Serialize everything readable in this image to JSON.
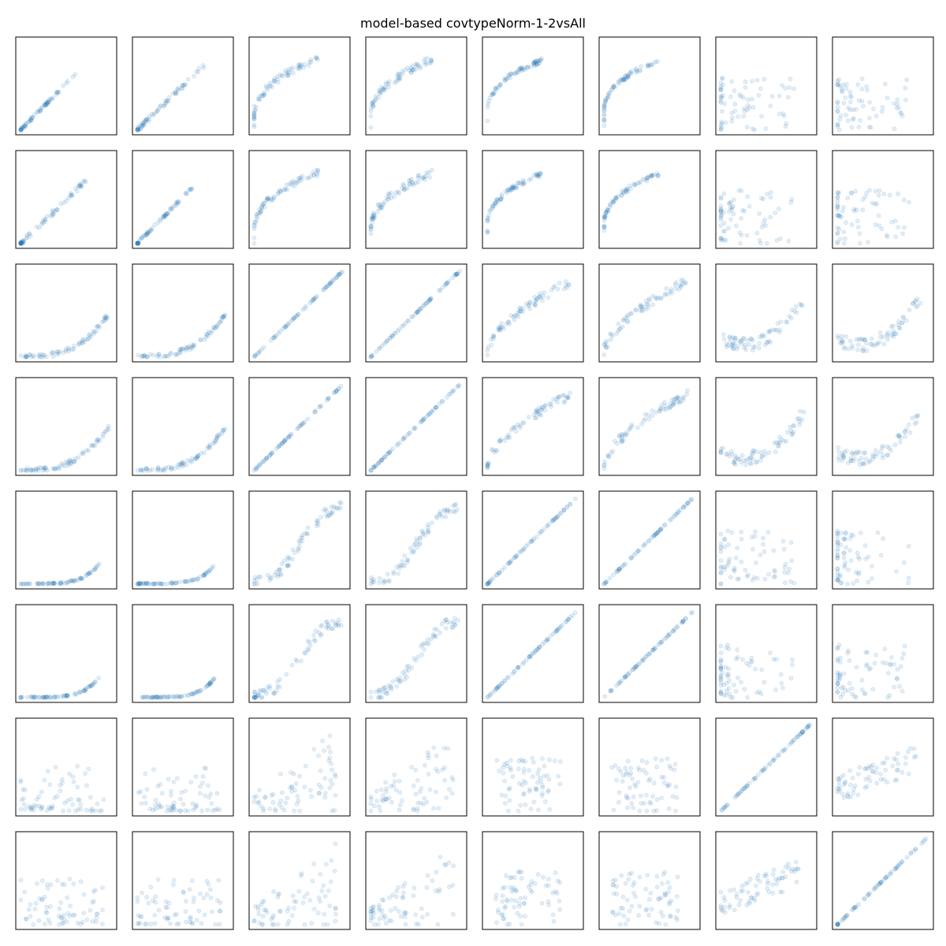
{
  "chart_data": {
    "type": "scatter",
    "title": "model-based covtypeNorm-1-2vsAll",
    "layout": "scatter-matrix",
    "rows": 8,
    "cols": 8,
    "axis_ticks": "none",
    "marker_color": "#1f77b4",
    "marker_alpha": 0.12,
    "xlim": [
      0,
      1
    ],
    "ylim": [
      0,
      1
    ],
    "panel_relations": [
      [
        "linear-cluster",
        "linear",
        "steep-curve",
        "steep-curve",
        "saturating-curve",
        "saturating-curve",
        "scatter",
        "scatter"
      ],
      [
        "linear",
        "linear-cluster",
        "steep-curve",
        "steep-curve",
        "saturating-curve",
        "saturating-curve",
        "scatter",
        "scatter"
      ],
      [
        "convex-curve",
        "convex-curve",
        "diagonal",
        "diagonal",
        "concave-curve",
        "concave-curve",
        "u-shape",
        "u-shape"
      ],
      [
        "convex-curve",
        "convex-curve",
        "diagonal",
        "diagonal",
        "concave-curve",
        "concave-curve",
        "u-shape",
        "u-shape"
      ],
      [
        "exponential",
        "exponential",
        "s-curve",
        "s-curve",
        "diagonal",
        "diagonal",
        "scatter",
        "scatter"
      ],
      [
        "exponential",
        "exponential",
        "s-curve",
        "s-curve",
        "diagonal",
        "diagonal",
        "scatter",
        "scatter"
      ],
      [
        "low-scatter",
        "low-scatter",
        "fan",
        "fan",
        "cloud",
        "cloud",
        "diagonal",
        "linear-scatter"
      ],
      [
        "low-scatter",
        "low-scatter",
        "fan",
        "fan",
        "cloud",
        "cloud",
        "linear-scatter",
        "diagonal"
      ]
    ]
  }
}
